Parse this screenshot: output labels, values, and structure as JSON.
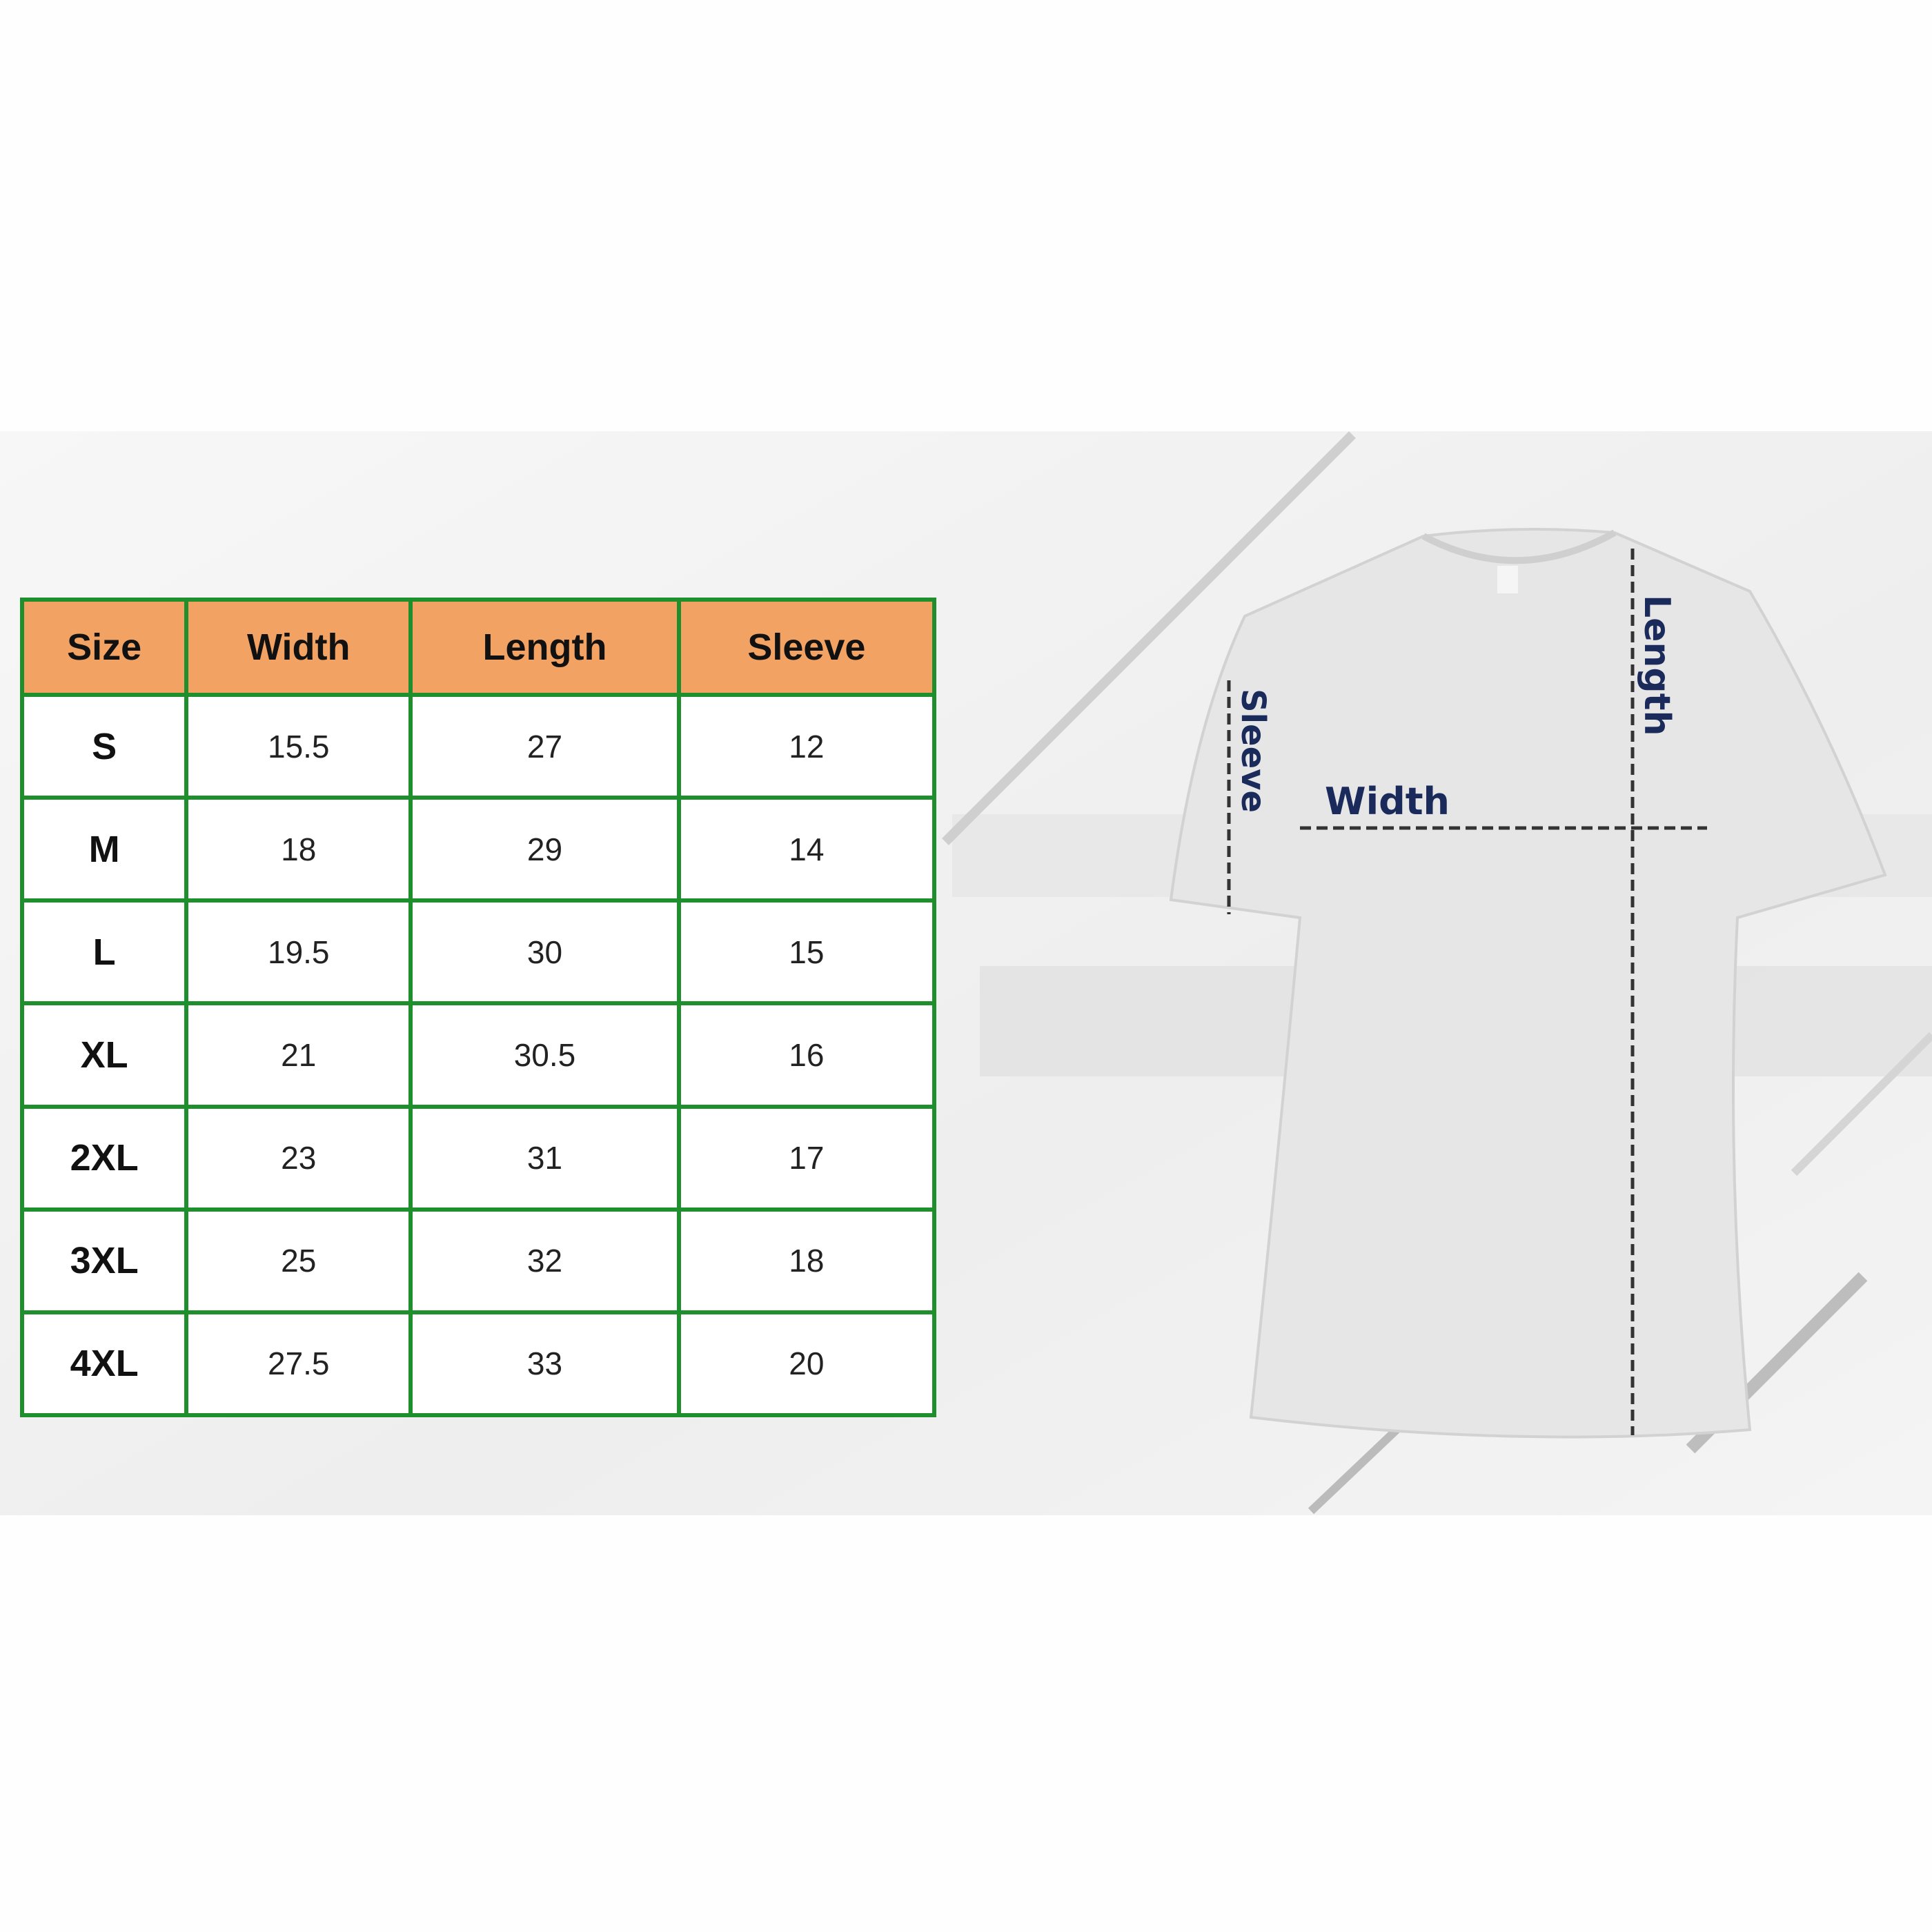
{
  "table": {
    "headers": [
      "Size",
      "Width",
      "Length",
      "Sleeve"
    ],
    "rows": [
      [
        "S",
        "15.5",
        "27",
        "12"
      ],
      [
        "M",
        "18",
        "29",
        "14"
      ],
      [
        "L",
        "19.5",
        "30",
        "15"
      ],
      [
        "XL",
        "21",
        "30.5",
        "16"
      ],
      [
        "2XL",
        "23",
        "31",
        "17"
      ],
      [
        "3XL",
        "25",
        "32",
        "18"
      ],
      [
        "4XL",
        "27.5",
        "33",
        "20"
      ]
    ]
  },
  "diagram": {
    "width_label": "Width",
    "length_label": "Length",
    "sleeve_label": "Sleeve"
  },
  "colors": {
    "header_fill": "#f2a262",
    "grid_border": "#1f8f2e",
    "label_text": "#1a2a5a"
  }
}
